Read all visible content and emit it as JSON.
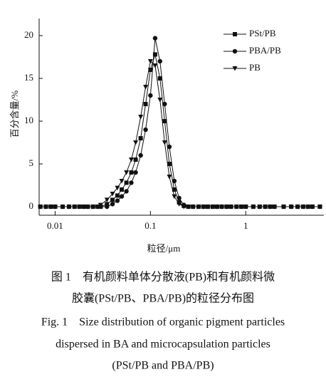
{
  "chart_data": {
    "type": "line",
    "ylabel": "百分含量/%",
    "xlabel": "粒径/μm",
    "xscale": "log",
    "xlim": [
      0.0068,
      6.6
    ],
    "xticks": [
      0.01,
      0.1,
      1
    ],
    "ylim": [
      -1,
      22
    ],
    "yticks": [
      0,
      5,
      10,
      15,
      20
    ],
    "legend": "upper right",
    "x": [
      0.007,
      0.008,
      0.009,
      0.01,
      0.012,
      0.014,
      0.016,
      0.018,
      0.02,
      0.022,
      0.025,
      0.028,
      0.03,
      0.035,
      0.04,
      0.045,
      0.05,
      0.056,
      0.063,
      0.07,
      0.079,
      0.089,
      0.1,
      0.112,
      0.126,
      0.141,
      0.158,
      0.178,
      0.2,
      0.224,
      0.25,
      0.28,
      0.32,
      0.36,
      0.4,
      0.45,
      0.5,
      0.56,
      0.63,
      0.7,
      0.8,
      0.9,
      1,
      1.2,
      1.4,
      1.6,
      1.8,
      2,
      2.5,
      3,
      3.5,
      4,
      4.5,
      5,
      6
    ],
    "series": [
      {
        "name": "PSt/PB",
        "color": "#111111",
        "marker": "square",
        "values": [
          0,
          0,
          0,
          0,
          0,
          0,
          0,
          0,
          0,
          0,
          0,
          0,
          0,
          0.3,
          0.8,
          1.3,
          2,
          2.8,
          4,
          5.5,
          8,
          12,
          16,
          17.8,
          15,
          10,
          5,
          2,
          0.5,
          0.1,
          0,
          0,
          0,
          0,
          0,
          0,
          0,
          0,
          0,
          0,
          0,
          0,
          0,
          0,
          0,
          0,
          0,
          0,
          0,
          0,
          0,
          0,
          0,
          0,
          0
        ]
      },
      {
        "name": "PBA/PB",
        "color": "#111111",
        "marker": "circle",
        "values": [
          0,
          0,
          0,
          0,
          0,
          0,
          0,
          0,
          0,
          0,
          0,
          0,
          0,
          0,
          0.3,
          0.7,
          1.2,
          1.8,
          2.8,
          4,
          6,
          9,
          13,
          19.7,
          17,
          12,
          7,
          3,
          1,
          0.2,
          0,
          0,
          0,
          0,
          0,
          0,
          0,
          0,
          0,
          0,
          0,
          0,
          0,
          0,
          0,
          0,
          0,
          0,
          0,
          0,
          0,
          0,
          0,
          0,
          0
        ]
      },
      {
        "name": "PB",
        "color": "#111111",
        "marker": "triangle-down",
        "values": [
          0,
          0,
          0,
          0,
          0,
          0,
          0,
          0,
          0,
          0,
          0,
          0,
          0.2,
          0.8,
          1.5,
          2.2,
          3,
          4,
          5.5,
          7.5,
          10.5,
          14,
          17,
          16.5,
          12.5,
          7.5,
          3.5,
          1.2,
          0.3,
          0,
          0,
          0,
          0,
          0,
          0,
          0,
          0,
          0,
          0,
          0,
          0,
          0,
          0,
          0,
          0,
          0,
          0,
          0,
          0,
          0,
          0,
          0,
          0,
          0,
          0
        ]
      }
    ],
    "caption_zh": [
      "图 1　有机颜料单体分散液(PB)和有机颜料微",
      "胶囊(PSt/PB、PBA/PB)的粒径分布图"
    ],
    "caption_en": [
      "Fig. 1　Size distribution of organic pigment particles",
      "dispersed in BA and microcapsulation particles",
      "(PSt/PB and PBA/PB)"
    ]
  }
}
